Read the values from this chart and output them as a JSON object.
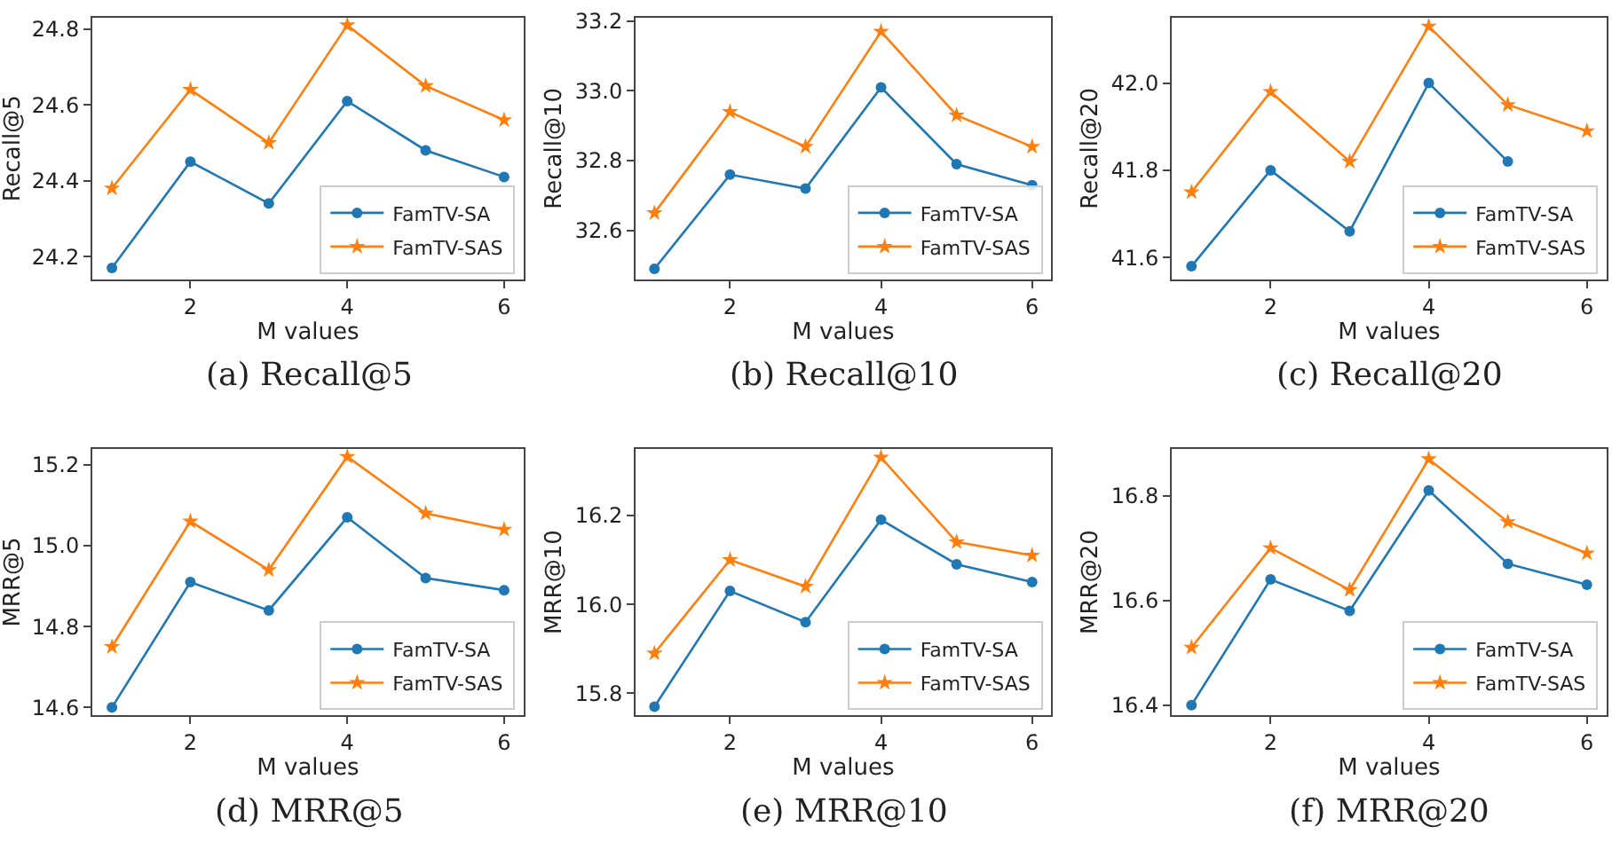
{
  "chart_data": [
    {
      "type": "line",
      "title": "(a) Recall@5",
      "xlabel": "M values",
      "ylabel": "Recall@5",
      "x": [
        1,
        2,
        3,
        4,
        5,
        6
      ],
      "xlim": [
        0.75,
        6.25
      ],
      "xticks": [
        2,
        4,
        6
      ],
      "ylim": [
        24.14,
        24.83
      ],
      "yticks": [
        24.2,
        24.4,
        24.6,
        24.8
      ],
      "legend": "bottom right",
      "series": [
        {
          "name": "FamTV-SA",
          "color": "#1f77b4",
          "marker": "circle",
          "values": [
            24.17,
            24.45,
            24.34,
            24.61,
            24.48,
            24.41
          ]
        },
        {
          "name": "FamTV-SAS",
          "color": "#ff7f0e",
          "marker": "star",
          "values": [
            24.38,
            24.64,
            24.5,
            24.81,
            24.65,
            24.56
          ]
        }
      ]
    },
    {
      "type": "line",
      "title": "(b) Recall@10",
      "xlabel": "M values",
      "ylabel": "Recall@10",
      "x": [
        1,
        2,
        3,
        4,
        5,
        6
      ],
      "xlim": [
        0.75,
        6.25
      ],
      "xticks": [
        2,
        4,
        6
      ],
      "ylim": [
        32.46,
        33.21
      ],
      "yticks": [
        32.6,
        32.8,
        {
          "value": 33,
          "label": "33.0"
        },
        33.2
      ],
      "legend": "bottom right",
      "series": [
        {
          "name": "FamTV-SA",
          "color": "#1f77b4",
          "marker": "circle",
          "values": [
            32.49,
            32.76,
            32.72,
            33.01,
            32.79,
            32.73
          ]
        },
        {
          "name": "FamTV-SAS",
          "color": "#ff7f0e",
          "marker": "star",
          "values": [
            32.65,
            32.94,
            32.84,
            33.17,
            32.93,
            32.84
          ]
        }
      ]
    },
    {
      "type": "line",
      "title": "(c) Recall@20",
      "xlabel": "M values",
      "ylabel": "Recall@20",
      "x": [
        1,
        2,
        3,
        4,
        5,
        6
      ],
      "xlim": [
        0.75,
        6.25
      ],
      "xticks": [
        2,
        4,
        6
      ],
      "ylim": [
        41.55,
        42.15
      ],
      "yticks": [
        41.6,
        41.8,
        {
          "value": 42,
          "label": "42.0"
        }
      ],
      "legend": "bottom right",
      "series": [
        {
          "name": "FamTV-SA",
          "color": "#1f77b4",
          "marker": "circle",
          "values": [
            41.58,
            41.8,
            41.66,
            42.0,
            41.82,
            null
          ]
        },
        {
          "name": "FamTV-SAS",
          "color": "#ff7f0e",
          "marker": "star",
          "values": [
            41.75,
            41.98,
            41.82,
            42.13,
            41.95,
            41.89
          ]
        }
      ]
    },
    {
      "type": "line",
      "title": "(d) MRR@5",
      "xlabel": "M values",
      "ylabel": "MRR@5",
      "x": [
        1,
        2,
        3,
        4,
        5,
        6
      ],
      "xlim": [
        0.75,
        6.25
      ],
      "xticks": [
        2,
        4,
        6
      ],
      "ylim": [
        14.58,
        15.24
      ],
      "yticks": [
        14.6,
        14.8,
        {
          "value": 15,
          "label": "15.0"
        },
        15.2
      ],
      "legend": "bottom right",
      "series": [
        {
          "name": "FamTV-SA",
          "color": "#1f77b4",
          "marker": "circle",
          "values": [
            14.6,
            14.91,
            14.84,
            15.07,
            14.92,
            14.89
          ]
        },
        {
          "name": "FamTV-SAS",
          "color": "#ff7f0e",
          "marker": "star",
          "values": [
            14.75,
            15.06,
            14.94,
            15.22,
            15.08,
            15.04
          ]
        }
      ]
    },
    {
      "type": "line",
      "title": "(e) MRR@10",
      "xlabel": "M values",
      "ylabel": "MRR@10",
      "x": [
        1,
        2,
        3,
        4,
        5,
        6
      ],
      "xlim": [
        0.75,
        6.25
      ],
      "xticks": [
        2,
        4,
        6
      ],
      "ylim": [
        15.75,
        16.35
      ],
      "yticks": [
        15.8,
        {
          "value": 16,
          "label": "16.0"
        },
        16.2
      ],
      "legend": "bottom right",
      "series": [
        {
          "name": "FamTV-SA",
          "color": "#1f77b4",
          "marker": "circle",
          "values": [
            15.77,
            16.03,
            15.96,
            16.19,
            16.09,
            16.05
          ]
        },
        {
          "name": "FamTV-SAS",
          "color": "#ff7f0e",
          "marker": "star",
          "values": [
            15.89,
            16.1,
            16.04,
            16.33,
            16.14,
            16.11
          ]
        }
      ]
    },
    {
      "type": "line",
      "title": "(f) MRR@20",
      "xlabel": "M values",
      "ylabel": "MRR@20",
      "x": [
        1,
        2,
        3,
        4,
        5,
        6
      ],
      "xlim": [
        0.75,
        6.25
      ],
      "xticks": [
        2,
        4,
        6
      ],
      "ylim": [
        16.38,
        16.89
      ],
      "yticks": [
        16.4,
        16.6,
        16.8
      ],
      "legend": "bottom right",
      "series": [
        {
          "name": "FamTV-SA",
          "color": "#1f77b4",
          "marker": "circle",
          "values": [
            16.4,
            16.64,
            16.58,
            16.81,
            16.67,
            16.63
          ]
        },
        {
          "name": "FamTV-SAS",
          "color": "#ff7f0e",
          "marker": "star",
          "values": [
            16.51,
            16.7,
            16.62,
            16.87,
            16.75,
            16.69
          ]
        }
      ]
    }
  ]
}
